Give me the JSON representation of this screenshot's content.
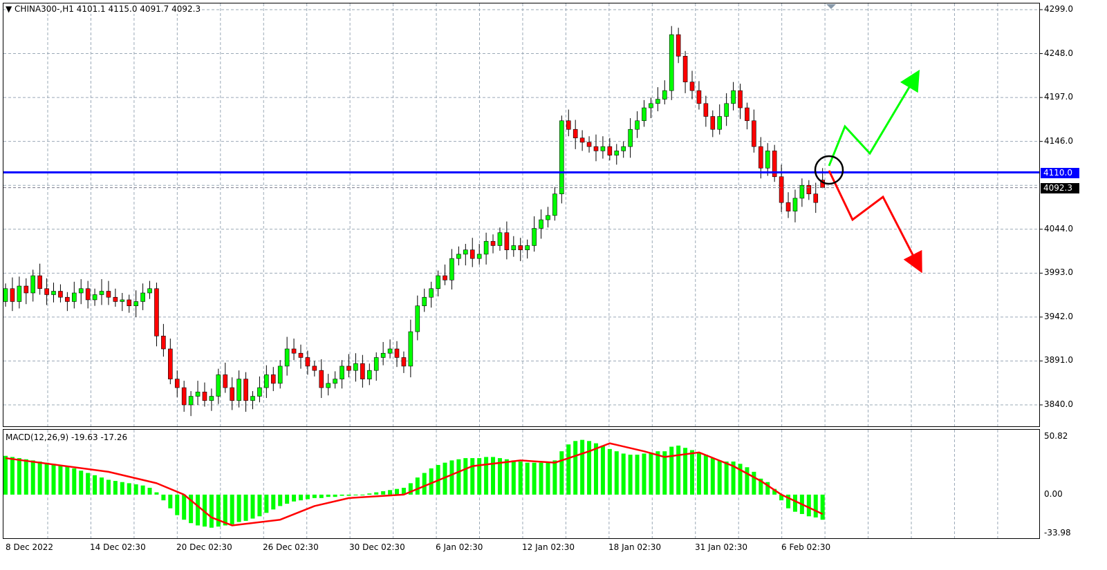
{
  "header": {
    "symbol_line": "CHINA300-,H1  4101.1 4115.0 4091.7 4092.3"
  },
  "colors": {
    "bull": "#00ff00",
    "bear": "#ff0000",
    "hline": "#0000ff",
    "grid": "#9aa8b6",
    "signal": "#ff0000",
    "histogram": "#00ff00"
  },
  "chart_data": [
    {
      "type": "candlestick",
      "symbol": "CHINA300-",
      "timeframe": "H1",
      "ylim": [
        3840.0,
        4299.0
      ],
      "y_ticks": [
        "4299.0",
        "4248.0",
        "4197.0",
        "4146.0",
        "4044.0",
        "3993.0",
        "3942.0",
        "3891.0",
        "3840.0"
      ],
      "x_ticks": [
        "8 Dec 2022",
        "14 Dec 02:30",
        "20 Dec 02:30",
        "26 Dec 02:30",
        "30 Dec 02:30",
        "6 Jan 02:30",
        "12 Jan 02:30",
        "18 Jan 02:30",
        "31 Jan 02:30",
        "6 Feb 02:30"
      ],
      "first_open": 3960,
      "closes": [
        3975,
        3960,
        3978,
        3970,
        3990,
        3975,
        3968,
        3972,
        3965,
        3960,
        3970,
        3975,
        3962,
        3968,
        3972,
        3965,
        3960,
        3962,
        3955,
        3960,
        3970,
        3975,
        3920,
        3905,
        3870,
        3860,
        3840,
        3850,
        3855,
        3845,
        3850,
        3875,
        3860,
        3845,
        3870,
        3845,
        3850,
        3860,
        3875,
        3865,
        3885,
        3905,
        3900,
        3895,
        3885,
        3880,
        3860,
        3865,
        3870,
        3885,
        3880,
        3888,
        3870,
        3880,
        3895,
        3900,
        3905,
        3895,
        3885,
        3925,
        3955,
        3965,
        3975,
        3990,
        3985,
        4010,
        4015,
        4020,
        4010,
        4015,
        4030,
        4025,
        4040,
        4020,
        4025,
        4020,
        4025,
        4045,
        4055,
        4060,
        4085,
        4170,
        4160,
        4150,
        4145,
        4140,
        4135,
        4140,
        4130,
        4135,
        4140,
        4160,
        4170,
        4185,
        4190,
        4195,
        4205,
        4270,
        4245,
        4215,
        4205,
        4190,
        4175,
        4160,
        4175,
        4190,
        4205,
        4185,
        4170,
        4140,
        4115,
        4135,
        4105,
        4075,
        4065,
        4080,
        4095,
        4085,
        4075,
        4092.3
      ],
      "horizontal_line": {
        "price": 4110.0,
        "label": "4110.0"
      },
      "bid_line": {
        "price": 4092.3,
        "label": "4092.3"
      },
      "last_bar": {
        "open": 4101.1,
        "high": 4115.0,
        "low": 4091.7,
        "close": 4092.3
      }
    },
    {
      "type": "macd",
      "title": "MACD(12,26,9) -19.63 -17.26",
      "ylim": [
        -33.98,
        50.82
      ],
      "y_ticks": [
        "50.82",
        "0.00",
        "-33.98"
      ],
      "histogram": [
        34,
        33,
        32,
        31,
        30,
        29,
        28,
        27,
        26,
        25,
        23,
        21,
        19,
        17,
        15,
        13,
        12,
        11,
        10,
        9,
        8,
        6,
        2,
        -5,
        -12,
        -18,
        -22,
        -25,
        -27,
        -28,
        -29,
        -28,
        -27,
        -26,
        -24,
        -23,
        -21,
        -19,
        -16,
        -13,
        -10,
        -8,
        -6,
        -5,
        -4,
        -3,
        -3,
        -2,
        -2,
        -1,
        -1,
        0,
        0,
        1,
        2,
        3,
        4,
        5,
        6,
        10,
        15,
        19,
        23,
        26,
        28,
        30,
        31,
        32,
        32,
        32,
        33,
        33,
        32,
        31,
        30,
        29,
        28,
        28,
        28,
        28,
        30,
        38,
        44,
        47,
        48,
        47,
        45,
        43,
        40,
        38,
        36,
        35,
        35,
        36,
        37,
        38,
        38,
        42,
        43,
        41,
        39,
        37,
        35,
        32,
        30,
        29,
        29,
        27,
        24,
        20,
        14,
        11,
        5,
        -5,
        -12,
        -15,
        -17,
        -19,
        -20,
        -22
      ],
      "signal_points": [
        [
          0,
          32
        ],
        [
          15,
          20
        ],
        [
          22,
          10
        ],
        [
          26,
          0
        ],
        [
          30,
          -20
        ],
        [
          33,
          -27
        ],
        [
          40,
          -22
        ],
        [
          45,
          -10
        ],
        [
          50,
          -3
        ],
        [
          58,
          0
        ],
        [
          62,
          10
        ],
        [
          68,
          25
        ],
        [
          75,
          30
        ],
        [
          80,
          28
        ],
        [
          85,
          38
        ],
        [
          88,
          45
        ],
        [
          93,
          38
        ],
        [
          96,
          33
        ],
        [
          101,
          37
        ],
        [
          106,
          25
        ],
        [
          110,
          12
        ],
        [
          113,
          0
        ],
        [
          119,
          -17
        ]
      ]
    }
  ]
}
